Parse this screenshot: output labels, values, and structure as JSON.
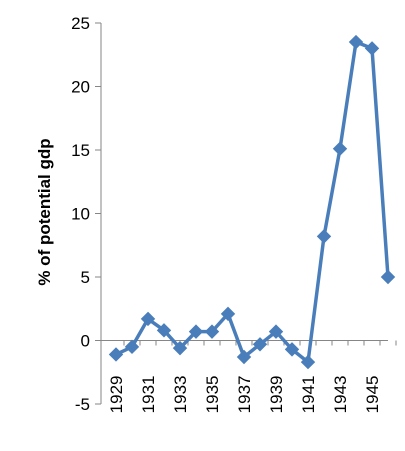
{
  "chart_data": {
    "type": "line",
    "title": "",
    "xlabel": "",
    "ylabel": "% of potential gdp",
    "ylim": [
      -5,
      25
    ],
    "yticks": [
      -5,
      0,
      5,
      10,
      15,
      20,
      25
    ],
    "x": [
      1929,
      1930,
      1931,
      1932,
      1933,
      1934,
      1935,
      1936,
      1937,
      1938,
      1939,
      1940,
      1941,
      1942,
      1943,
      1944,
      1945,
      1946
    ],
    "xtick_labels": [
      "1929",
      "1931",
      "1933",
      "1935",
      "1937",
      "1939",
      "1941",
      "1943",
      "1945"
    ],
    "series": [
      {
        "values": [
          -1.1,
          -0.5,
          1.7,
          0.8,
          -0.6,
          0.7,
          0.7,
          2.1,
          -1.3,
          -0.3,
          0.7,
          -0.7,
          -1.7,
          8.2,
          15.1,
          23.5,
          23.0,
          5.0
        ],
        "color": "#4a7ebb",
        "marker": "diamond"
      }
    ],
    "grid": false,
    "legend": "none"
  }
}
